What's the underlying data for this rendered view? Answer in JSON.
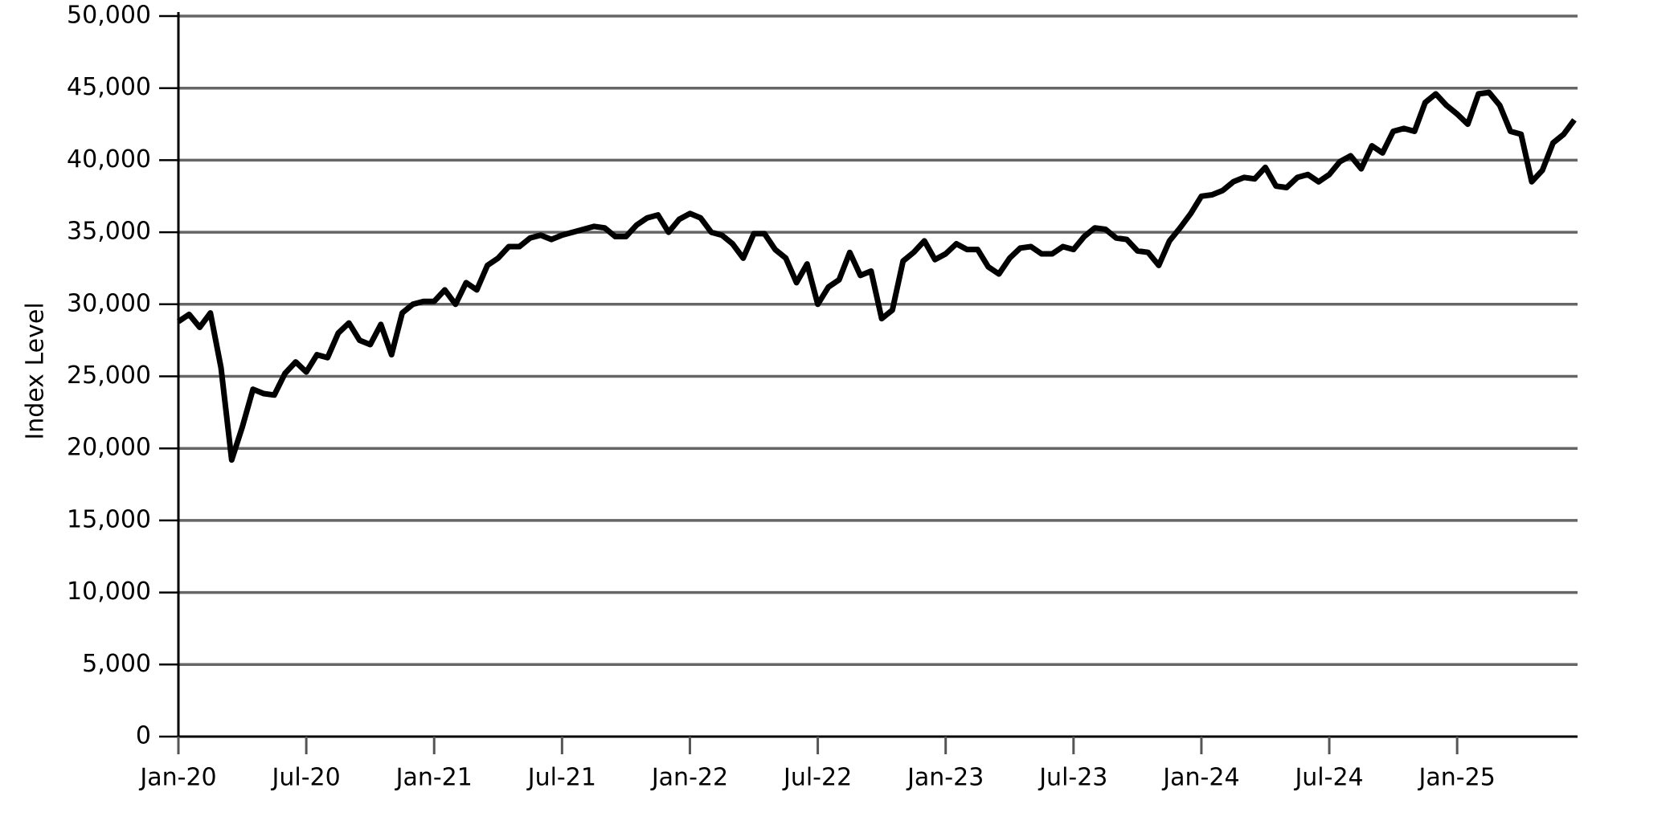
{
  "chart_data": {
    "type": "line",
    "y_label": "Index Level",
    "categories": [
      "Jan-20",
      null,
      null,
      null,
      null,
      null,
      null,
      null,
      null,
      null,
      null,
      null,
      "Jul-20",
      null,
      null,
      null,
      null,
      null,
      null,
      null,
      null,
      null,
      null,
      null,
      "Jan-21",
      null,
      null,
      null,
      null,
      null,
      null,
      null,
      null,
      null,
      null,
      null,
      "Jul-21",
      null,
      null,
      null,
      null,
      null,
      null,
      null,
      null,
      null,
      null,
      null,
      "Jan-22",
      null,
      null,
      null,
      null,
      null,
      null,
      null,
      null,
      null,
      null,
      null,
      "Jul-22",
      null,
      null,
      null,
      null,
      null,
      null,
      null,
      null,
      null,
      null,
      null,
      "Jan-23",
      null,
      null,
      null,
      null,
      null,
      null,
      null,
      null,
      null,
      null,
      null,
      "Jul-23",
      null,
      null,
      null,
      null,
      null,
      null,
      null,
      null,
      null,
      null,
      null,
      "Jan-24",
      null,
      null,
      null,
      null,
      null,
      null,
      null,
      null,
      null,
      null,
      null,
      "Jul-24",
      null,
      null,
      null,
      null,
      null,
      null,
      null,
      null,
      null,
      null,
      null,
      "Jan-25",
      null,
      null,
      null,
      null,
      null,
      null,
      null,
      null,
      null,
      null,
      null
    ],
    "series": [
      {
        "color": "#000000",
        "values": [
          28800,
          29300,
          28400,
          29400,
          25600,
          19200,
          21500,
          24100,
          23800,
          23700,
          25200,
          26000,
          25300,
          26500,
          26300,
          28000,
          28700,
          27500,
          27200,
          28600,
          26500,
          29400,
          30000,
          30200,
          30200,
          31000,
          30000,
          31500,
          31000,
          32700,
          33200,
          34000,
          34000,
          34600,
          34800,
          34500,
          34800,
          35000,
          35200,
          35400,
          35300,
          34700,
          34700,
          35500,
          36000,
          36200,
          35000,
          35900,
          36300,
          36000,
          35000,
          34800,
          34200,
          33200,
          34900,
          34900,
          33800,
          33200,
          31500,
          32800,
          30000,
          31200,
          31700,
          33600,
          32000,
          32300,
          29000,
          29600,
          33000,
          33600,
          34400,
          33100,
          33500,
          34200,
          33800,
          33800,
          32600,
          32100,
          33200,
          33900,
          34000,
          33500,
          33500,
          34000,
          33800,
          34700,
          35300,
          35200,
          34600,
          34500,
          33700,
          33600,
          32700,
          34400,
          35300,
          36300,
          37500,
          37600,
          37900,
          38500,
          38800,
          38700,
          39500,
          38200,
          38100,
          38800,
          39000,
          38500,
          39000,
          39900,
          40300,
          39400,
          41000,
          40500,
          42000,
          42200,
          42000,
          44000,
          44600,
          43800,
          43200,
          42500,
          44600,
          44700,
          43800,
          42000,
          41800,
          38500,
          39300,
          41200,
          41800,
          42800
        ]
      }
    ],
    "ylim": [
      0,
      50000
    ],
    "yticks": [
      0,
      {
        "value": 5000,
        "label": "5,000"
      },
      {
        "value": 10000,
        "label": "10,000"
      },
      {
        "value": 15000,
        "label": "15,000"
      },
      {
        "value": 20000,
        "label": "20,000"
      },
      {
        "value": 25000,
        "label": "25,000"
      },
      {
        "value": 30000,
        "label": "30,000"
      },
      {
        "value": 35000,
        "label": "35,000"
      },
      {
        "value": 40000,
        "label": "40,000"
      },
      {
        "value": 45000,
        "label": "45,000"
      },
      {
        "value": 50000,
        "label": "50,000"
      }
    ],
    "grid": true
  }
}
